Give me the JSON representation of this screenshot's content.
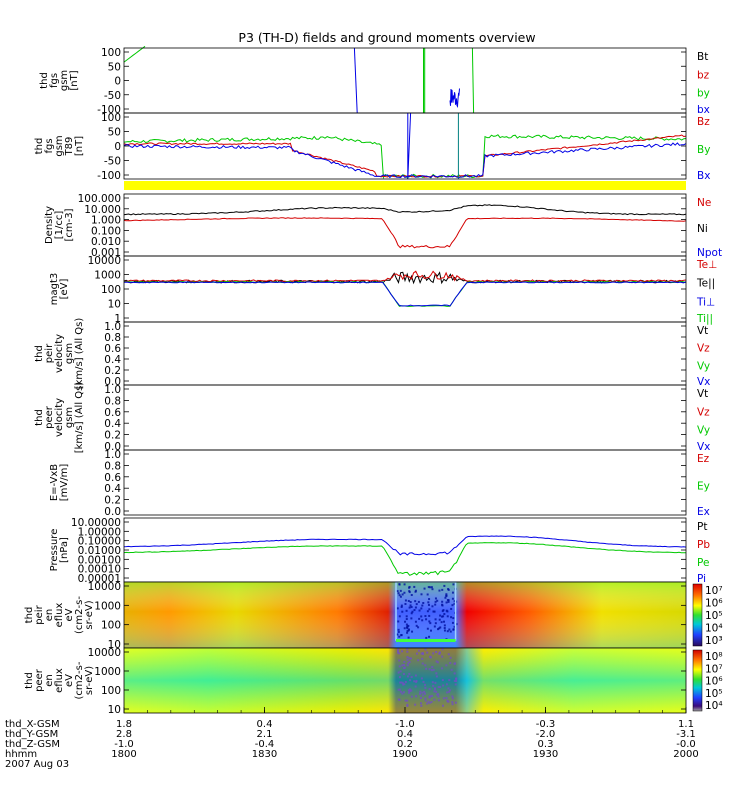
{
  "title": "P3 (TH-D) fields and ground moments overview",
  "chart_data": {
    "type": "line",
    "x": {
      "tick_labels": [
        "1800",
        "1830",
        "1900",
        "1930",
        "2000"
      ],
      "rows": [
        {
          "label": "thd_X-GSM",
          "values": [
            "1.8",
            "0.4",
            "-1.0",
            "-0.3",
            "1.1"
          ]
        },
        {
          "label": "thd_Y-GSM",
          "values": [
            "2.8",
            "2.1",
            "0.4",
            "-2.0",
            "-3.1"
          ]
        },
        {
          "label": "thd_Z-GSM",
          "values": [
            "-1.0",
            "-0.4",
            "0.2",
            "0.3",
            "-0.0"
          ]
        },
        {
          "label": "hhmm",
          "values": [
            "1800",
            "1830",
            "1900",
            "1930",
            "2000"
          ]
        }
      ],
      "date": "2007 Aug 03"
    },
    "panels": [
      {
        "id": "fgs",
        "ylabel": [
          "thd",
          "fgs",
          "gsm",
          "[nT]"
        ],
        "ylim": [
          -120,
          110
        ],
        "ticks": [
          "100",
          "50",
          "0",
          "-50",
          "-100"
        ],
        "legend": [
          {
            "name": "Bt",
            "color": "#000000"
          },
          {
            "name": "bz",
            "color": "#d40000"
          },
          {
            "name": "by",
            "color": "#00c800"
          },
          {
            "name": "bx",
            "color": "#0000e6"
          }
        ]
      },
      {
        "id": "fgs2",
        "ylabel": [
          "thd",
          "fgs",
          "gsm",
          "T89",
          "[nT]"
        ],
        "ylim": [
          -120,
          110
        ],
        "ticks": [
          "100",
          "50",
          "0",
          "-50",
          "-100"
        ],
        "legend": [
          {
            "name": "Bz",
            "color": "#d40000"
          },
          {
            "name": "By",
            "color": "#00c800"
          },
          {
            "name": "Bx",
            "color": "#0000e6"
          }
        ]
      },
      {
        "id": "density",
        "ylabel": [
          "Density",
          "[1/cc]",
          "[cm-3]"
        ],
        "ylim": [
          -3.3,
          2.5
        ],
        "log": true,
        "ticks": [
          "100.000",
          "10.000",
          "1.000",
          "0.100",
          "0.010",
          "0.001"
        ],
        "legend": [
          {
            "name": "Ne",
            "color": "#d40000"
          },
          {
            "name": "Ni",
            "color": "#000000"
          },
          {
            "name": "Npot",
            "color": "#0000e6"
          }
        ]
      },
      {
        "id": "temp",
        "ylabel": [
          "magt3",
          "[eV]"
        ],
        "ylim": [
          0,
          4
        ],
        "log": true,
        "ticks": [
          "10000",
          "1000",
          "100",
          "10",
          "1"
        ],
        "legend": [
          {
            "name": "Te⊥",
            "color": "#d40000"
          },
          {
            "name": "Te||",
            "color": "#000000"
          },
          {
            "name": "Ti⊥",
            "color": "#0000e6"
          },
          {
            "name": "Ti||",
            "color": "#00c800"
          }
        ]
      },
      {
        "id": "vi",
        "ylabel": [
          "thd",
          "peir",
          "velocity",
          "gsm",
          "[km/s] (All Qs)"
        ],
        "ylim": [
          0,
          1
        ],
        "ticks": [
          "1.0",
          "0.8",
          "0.6",
          "0.4",
          "0.2",
          "0.0"
        ],
        "legend": [
          {
            "name": "Vt",
            "color": "#000000"
          },
          {
            "name": "Vz",
            "color": "#d40000"
          },
          {
            "name": "Vy",
            "color": "#00c800"
          },
          {
            "name": "Vx",
            "color": "#0000e6"
          }
        ]
      },
      {
        "id": "ve",
        "ylabel": [
          "thd",
          "peer",
          "velocity",
          "gsm",
          "[km/s] (All Qs)"
        ],
        "ylim": [
          0,
          1
        ],
        "ticks": [
          "1.0",
          "0.8",
          "0.6",
          "0.4",
          "0.2",
          "0.0"
        ],
        "legend": [
          {
            "name": "Vt",
            "color": "#000000"
          },
          {
            "name": "Vz",
            "color": "#d40000"
          },
          {
            "name": "Vy",
            "color": "#00c800"
          },
          {
            "name": "Vx",
            "color": "#0000e6"
          }
        ]
      },
      {
        "id": "efield",
        "ylabel": [
          "E=-VxB",
          "[mV/m]"
        ],
        "ylim": [
          0,
          1
        ],
        "ticks": [
          "1.0",
          "0.8",
          "0.6",
          "0.4",
          "0.2",
          "0.0"
        ],
        "legend": [
          {
            "name": "Ez",
            "color": "#d40000"
          },
          {
            "name": "Ey",
            "color": "#00c800"
          },
          {
            "name": "Ex",
            "color": "#0000e6"
          }
        ]
      },
      {
        "id": "pressure",
        "ylabel": [
          "Pressure",
          "[nPa]"
        ],
        "ylim": [
          -5.3,
          1.5
        ],
        "log": true,
        "ticks": [
          "10.00000",
          "1.00000",
          "0.10000",
          "0.01000",
          "0.00100",
          "0.00010",
          "0.00001"
        ],
        "legend": [
          {
            "name": "Pt",
            "color": "#000000"
          },
          {
            "name": "Pb",
            "color": "#d40000"
          },
          {
            "name": "Pe",
            "color": "#00c800"
          },
          {
            "name": "Pi",
            "color": "#0000e6"
          }
        ]
      },
      {
        "id": "ion_spec",
        "type": "heatmap",
        "ylabel": [
          "thd",
          "peir",
          "en",
          "eflux",
          "eV",
          "(cm2-s-",
          "sr-eV)"
        ],
        "ticks": [
          "10000",
          "1000",
          "100",
          "10"
        ],
        "colorbar_ticks": [
          "10⁷",
          "10⁶",
          "10⁵",
          "10⁴",
          "10³"
        ]
      },
      {
        "id": "ele_spec",
        "type": "heatmap",
        "ylabel": [
          "thd",
          "peer",
          "en",
          "eflux",
          "eV",
          "(cm2-s-",
          "sr-eV)"
        ],
        "ticks": [
          "10000",
          "1000",
          "100",
          "10"
        ],
        "colorbar_ticks": [
          "10⁸",
          "10⁷",
          "10⁶",
          "10⁵",
          "10⁴"
        ]
      }
    ]
  }
}
